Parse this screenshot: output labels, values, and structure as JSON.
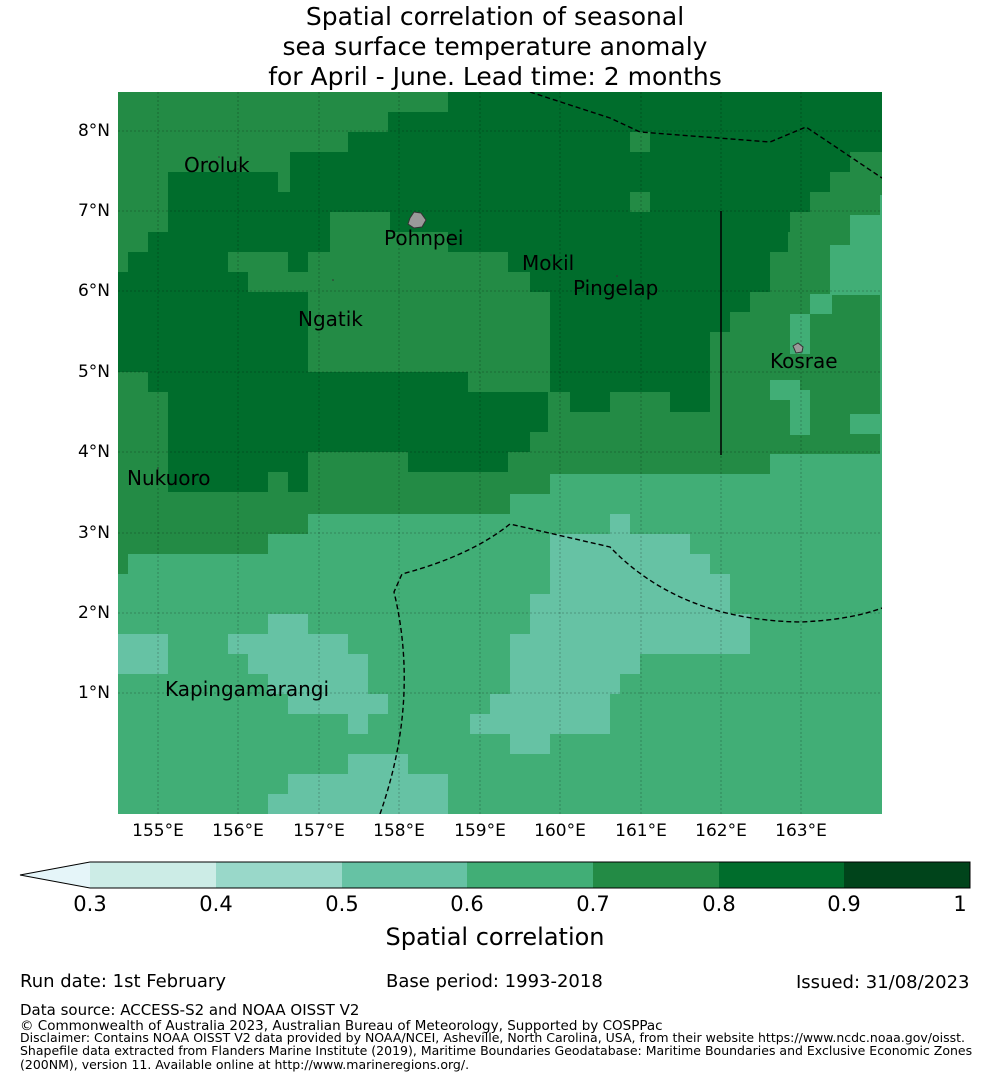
{
  "title": {
    "line1": "Spatial correlation of seasonal",
    "line2": "sea surface temperature anomaly",
    "line3": "for April - June. Lead time: 2 months"
  },
  "map": {
    "lat_ticks": [
      "8°N",
      "7°N",
      "6°N",
      "5°N",
      "4°N",
      "3°N",
      "2°N",
      "1°N"
    ],
    "lon_ticks": [
      "155°E",
      "156°E",
      "157°E",
      "158°E",
      "159°E",
      "160°E",
      "161°E",
      "162°E",
      "163°E"
    ],
    "places": [
      "Oroluk",
      "Pohnpei",
      "Mokil",
      "Pingelap",
      "Ngatik",
      "Kosrae",
      "Nukuoro",
      "Kapingamarangi"
    ],
    "lon_range": [
      154.5,
      164.0
    ],
    "lat_range": [
      -0.25,
      8.5
    ]
  },
  "colorbar": {
    "ticks": [
      "0.3",
      "0.4",
      "0.5",
      "0.6",
      "0.7",
      "0.8",
      "0.9",
      "1"
    ],
    "colors": [
      "#e5f5f9",
      "#ccece6",
      "#99d8c9",
      "#66c2a4",
      "#41ae76",
      "#238b45",
      "#006d2c",
      "#00441b"
    ],
    "label": "Spatial correlation"
  },
  "footer": {
    "run_date": "Run date: 1st February",
    "base_period": "Base period: 1993-2018",
    "issued": "Issued: 31/08/2023",
    "data_source": "Data source: ACCESS-S2 and NOAA OISST V2",
    "copyright": "© Commonwealth of Australia 2023, Australian Bureau of Meteorology, Supported by COSPPac",
    "disclaimer": "Disclaimer: Contains NOAA OISST V2 data provided by NOAA/NCEI, Asheville, North Carolina, USA, from their website https://www.ncdc.noaa.gov/oisst.",
    "shapefile1": "Shapefile data extracted from Flanders Marine Institute (2019), Maritime Boundaries Geodatabase: Maritime Boundaries and Exclusive Economic Zones",
    "shapefile2": "(200NM), version 11. Available online at http://www.marineregions.org/."
  }
}
